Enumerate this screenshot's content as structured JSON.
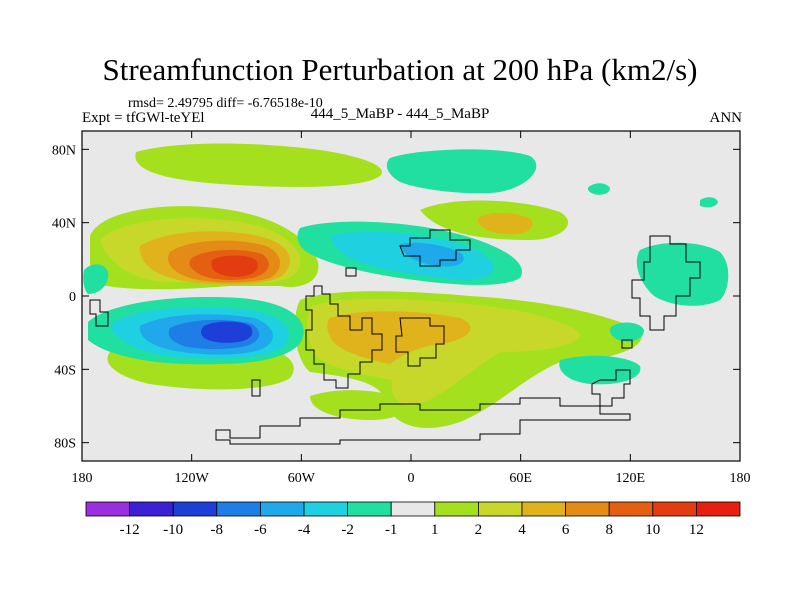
{
  "title": "Streamfunction Perturbation at 200 hPa (km2/s)",
  "stats": "rmsd= 2.49795  diff= -6.76518e-10",
  "expt": "Expt = tfGWl-teYEl",
  "runs": "444_5_MaBP - 444_5_MaBP",
  "season": "ANN",
  "axes": {
    "lat_ticks": [
      "80N",
      "40N",
      "0",
      "40S",
      "80S"
    ],
    "lon_ticks": [
      "180",
      "120W",
      "60W",
      "0",
      "60E",
      "120E",
      "180"
    ]
  },
  "colorbar": {
    "labels": [
      "-12",
      "-10",
      "-8",
      "-6",
      "-4",
      "-2",
      "-1",
      "1",
      "2",
      "4",
      "6",
      "8",
      "10",
      "12"
    ],
    "colors": [
      "#9b2fe0",
      "#3b20d6",
      "#1d3fd8",
      "#1f7de6",
      "#1fa8ea",
      "#1fd0e0",
      "#20dfa0",
      "#e8e8e8",
      "#a5e01f",
      "#c8d82a",
      "#e0b21c",
      "#e48a16",
      "#e46010",
      "#e23c10",
      "#e81e0e"
    ]
  },
  "colors": {
    "land_outline": "#000000",
    "neutral_fill": "#e8e8e8"
  }
}
